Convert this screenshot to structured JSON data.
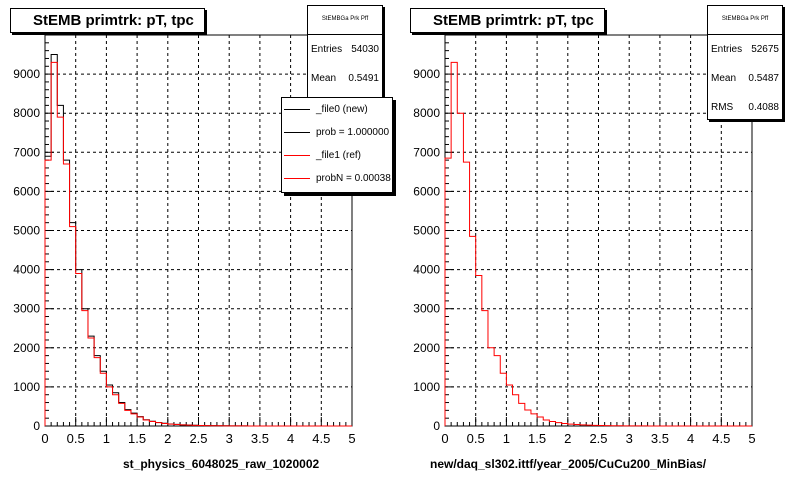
{
  "colors": {
    "new": "#000000",
    "ref": "#ff0000",
    "frame": "#000000"
  },
  "footer_text": "",
  "chart_data": [
    {
      "type": "bar",
      "title": "StEMB primtrk: pT, tpc",
      "xlabel": "st_physics_6048025_raw_1020002",
      "ylabel": "",
      "xlim": [
        0,
        5
      ],
      "ylim": [
        0,
        10000
      ],
      "xticks": [
        "0",
        "0.5",
        "1",
        "1.5",
        "2",
        "2.5",
        "3",
        "3.5",
        "4",
        "4.5",
        "5"
      ],
      "yticks": [
        "0",
        "1000",
        "2000",
        "3000",
        "4000",
        "5000",
        "6000",
        "7000",
        "8000",
        "9000"
      ],
      "grid": true,
      "bin_width": 0.1,
      "bin_edges_start": 0,
      "stats": {
        "header": "StEMBGa Prk Pff",
        "rows": [
          {
            "label": "Entries",
            "value": "54030"
          },
          {
            "label": "Mean",
            "value": "0.5491"
          }
        ]
      },
      "legend": {
        "placement": "top-right",
        "entries": [
          {
            "label": "_file0 (new)",
            "color": "#000000"
          },
          {
            "label": "prob = 1.000000",
            "color": "#000000"
          },
          {
            "label": "_file1 (ref)",
            "color": "#ff0000"
          },
          {
            "label": "probN = 0.00038",
            "color": "#ff0000"
          }
        ]
      },
      "series": [
        {
          "name": "_file0 (new)",
          "color": "#000000",
          "values": [
            6900,
            9500,
            8200,
            6800,
            5200,
            4000,
            3000,
            2300,
            1800,
            1400,
            1050,
            850,
            600,
            420,
            330,
            240,
            160,
            120,
            90,
            70,
            50,
            40,
            30,
            25,
            18,
            14,
            10,
            8,
            6,
            5,
            4,
            2,
            2,
            1,
            1,
            1,
            0,
            0,
            0,
            0,
            0,
            0,
            0,
            0,
            0,
            0,
            0,
            0,
            0,
            0
          ]
        },
        {
          "name": "_file1 (ref)",
          "color": "#ff0000",
          "values": [
            6800,
            9300,
            7900,
            6700,
            5100,
            3900,
            2950,
            2250,
            1750,
            1350,
            1000,
            800,
            580,
            400,
            310,
            230,
            155,
            115,
            85,
            65,
            48,
            38,
            28,
            22,
            16,
            12,
            9,
            7,
            5,
            4,
            3,
            2,
            2,
            1,
            1,
            1,
            0,
            0,
            0,
            0,
            0,
            0,
            0,
            0,
            0,
            0,
            0,
            0,
            0,
            0
          ]
        }
      ]
    },
    {
      "type": "bar",
      "title": "StEMB primtrk: pT, tpc",
      "xlabel": "new/daq_sl302.ittf/year_2005/CuCu200_MinBias/",
      "ylabel": "",
      "xlim": [
        0,
        5
      ],
      "ylim": [
        0,
        10000
      ],
      "xticks": [
        "0",
        "0.5",
        "1",
        "1.5",
        "2",
        "2.5",
        "3",
        "3.5",
        "4",
        "4.5",
        "5"
      ],
      "yticks": [
        "0",
        "1000",
        "2000",
        "3000",
        "4000",
        "5000",
        "6000",
        "7000",
        "8000",
        "9000"
      ],
      "grid": true,
      "bin_width": 0.1,
      "bin_edges_start": 0,
      "stats": {
        "header": "StEMBGa Prk Pff",
        "rows": [
          {
            "label": "Entries",
            "value": "52675"
          },
          {
            "label": "Mean",
            "value": "0.5487"
          },
          {
            "label": "RMS",
            "value": "0.4088"
          }
        ]
      },
      "series": [
        {
          "name": "",
          "color": "#ff0000",
          "values": [
            6850,
            9300,
            8000,
            6750,
            4850,
            3850,
            2950,
            2000,
            1800,
            1350,
            1050,
            800,
            580,
            410,
            310,
            230,
            155,
            115,
            85,
            65,
            48,
            38,
            28,
            22,
            16,
            12,
            9,
            7,
            5,
            4,
            3,
            2,
            2,
            1,
            1,
            1,
            0,
            0,
            0,
            0,
            0,
            0,
            0,
            0,
            0,
            0,
            0,
            0,
            0,
            0
          ]
        }
      ]
    }
  ]
}
